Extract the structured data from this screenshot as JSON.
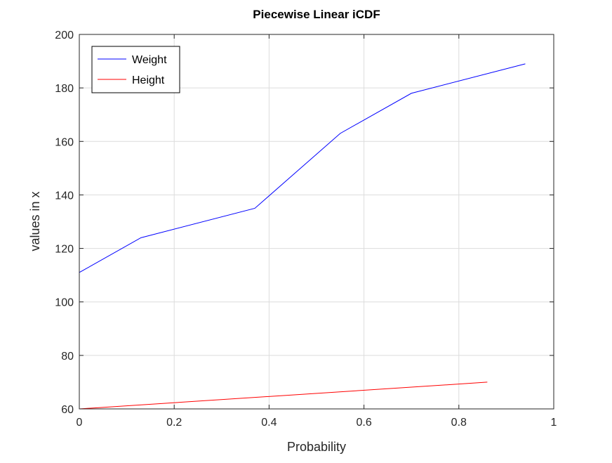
{
  "chart_data": {
    "type": "line",
    "title": "Piecewise Linear iCDF",
    "xlabel": "Probability",
    "ylabel": "values in x",
    "xlim": [
      0,
      1
    ],
    "ylim": [
      60,
      200
    ],
    "xticks": [
      0,
      0.2,
      0.4,
      0.6,
      0.8,
      1
    ],
    "xtick_labels": [
      "0",
      "0.2",
      "0.4",
      "0.6",
      "0.8",
      "1"
    ],
    "yticks": [
      60,
      80,
      100,
      120,
      140,
      160,
      180,
      200
    ],
    "ytick_labels": [
      "60",
      "80",
      "100",
      "120",
      "140",
      "160",
      "180",
      "200"
    ],
    "grid": true,
    "legend_placement": "top-left",
    "series": [
      {
        "name": "Weight",
        "color": "#0000ff",
        "x": [
          0,
          0.13,
          0.37,
          0.55,
          0.7,
          0.94
        ],
        "y": [
          111,
          124,
          135,
          163,
          178,
          189
        ]
      },
      {
        "name": "Height",
        "color": "#ff0000",
        "x": [
          0,
          0.86
        ],
        "y": [
          60,
          70
        ]
      }
    ]
  }
}
